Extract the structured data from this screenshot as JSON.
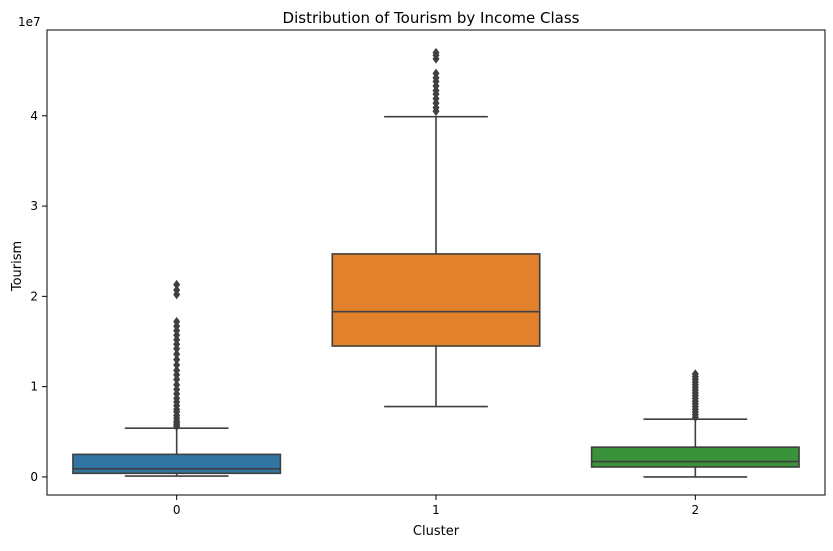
{
  "chart_data": {
    "type": "boxplot",
    "title": "Distribution of Tourism by Income Class",
    "xlabel": "Cluster",
    "ylabel": "Tourism",
    "y_offset_text": "1e7",
    "ylim": [
      -0.2,
      4.95
    ],
    "yticks": [
      0,
      1,
      2,
      3,
      4
    ],
    "grid": false,
    "categories": [
      "0",
      "1",
      "2"
    ],
    "boxes": [
      {
        "category": "0",
        "color": "#3274a1",
        "whisker_low": 0.01,
        "q1": 0.04,
        "median": 0.09,
        "q3": 0.25,
        "whisker_high": 0.54,
        "outliers": [
          0.56,
          0.58,
          0.6,
          0.62,
          0.65,
          0.68,
          0.72,
          0.75,
          0.79,
          0.83,
          0.87,
          0.92,
          0.97,
          1.02,
          1.08,
          1.13,
          1.18,
          1.24,
          1.3,
          1.36,
          1.42,
          1.47,
          1.52,
          1.57,
          1.62,
          1.67,
          1.72,
          2.02,
          2.07,
          2.13
        ]
      },
      {
        "category": "1",
        "color": "#e1812c",
        "whisker_low": 0.78,
        "q1": 1.45,
        "median": 1.83,
        "q3": 2.47,
        "whisker_high": 3.99,
        "outliers": [
          4.05,
          4.09,
          4.14,
          4.19,
          4.24,
          4.28,
          4.33,
          4.38,
          4.42,
          4.47,
          4.63,
          4.67,
          4.7
        ]
      },
      {
        "category": "2",
        "color": "#3a923a",
        "whisker_low": 0.0,
        "q1": 0.11,
        "median": 0.17,
        "q3": 0.33,
        "whisker_high": 0.64,
        "outliers": [
          0.66,
          0.69,
          0.72,
          0.75,
          0.78,
          0.81,
          0.84,
          0.87,
          0.9,
          0.93,
          0.96,
          0.99,
          1.02,
          1.05,
          1.08,
          1.11,
          1.14
        ]
      }
    ]
  }
}
